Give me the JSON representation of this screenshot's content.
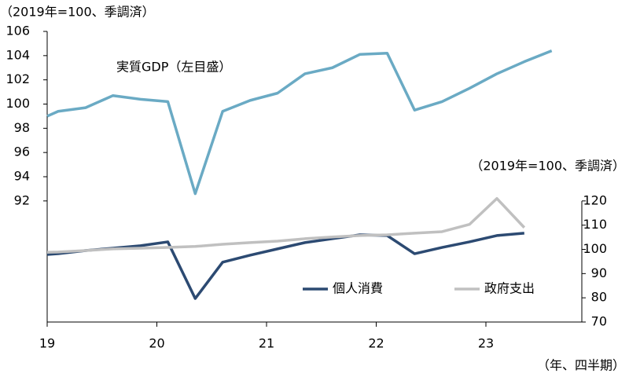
{
  "chart_data": {
    "type": "line",
    "ylabel": "（2019年=100、季調済）",
    "y2label": "（2019年=100、季調済）",
    "xlabel": "（年、四半期）",
    "annotation": "実質GDP（左目盛）",
    "x": [
      2019.0,
      2019.1,
      2019.35,
      2019.6,
      2019.85,
      2020.1,
      2020.35,
      2020.6,
      2020.85,
      2021.1,
      2021.35,
      2021.6,
      2021.85,
      2022.1,
      2022.35,
      2022.6,
      2022.85,
      2023.1,
      2023.35,
      2023.6
    ],
    "xlim": [
      2019.0,
      2024.0
    ],
    "xticks": [
      {
        "value": 2019,
        "label": "19"
      },
      {
        "value": 2020,
        "label": "20"
      },
      {
        "value": 2021,
        "label": "21"
      },
      {
        "value": 2022,
        "label": "22"
      },
      {
        "value": 2023,
        "label": "23"
      }
    ],
    "ylim": [
      82,
      106
    ],
    "yticks": [
      92,
      94,
      96,
      98,
      100,
      102,
      104,
      106
    ],
    "y2lim": [
      70,
      190
    ],
    "y2ticks": [
      70,
      80,
      90,
      100,
      110,
      120
    ],
    "series": [
      {
        "name": "実質GDP",
        "color": "#6aaac4",
        "axis": "y",
        "legend": false,
        "values": [
          99.0,
          99.4,
          99.7,
          100.7,
          100.4,
          100.2,
          92.6,
          99.4,
          100.3,
          100.9,
          102.5,
          103.0,
          104.1,
          104.2,
          99.5,
          100.2,
          101.3,
          102.5,
          103.5,
          104.4
        ]
      },
      {
        "name": "個人消費",
        "color": "#2c4a72",
        "axis": "y2",
        "values": [
          97.9,
          98.2,
          99.5,
          100.5,
          101.5,
          103.1,
          79.7,
          94.7,
          97.6,
          100.2,
          102.8,
          104.4,
          106.0,
          105.7,
          98.2,
          100.8,
          103.1,
          105.7,
          106.7,
          null
        ]
      },
      {
        "name": "政府支出",
        "color": "#c0c0c0",
        "axis": "y2",
        "values": [
          98.8,
          98.9,
          99.5,
          100.2,
          100.5,
          100.8,
          101.2,
          102.1,
          102.8,
          103.4,
          104.4,
          105.1,
          105.7,
          106.0,
          106.7,
          107.3,
          110.3,
          121.0,
          109.0,
          null
        ]
      }
    ]
  }
}
